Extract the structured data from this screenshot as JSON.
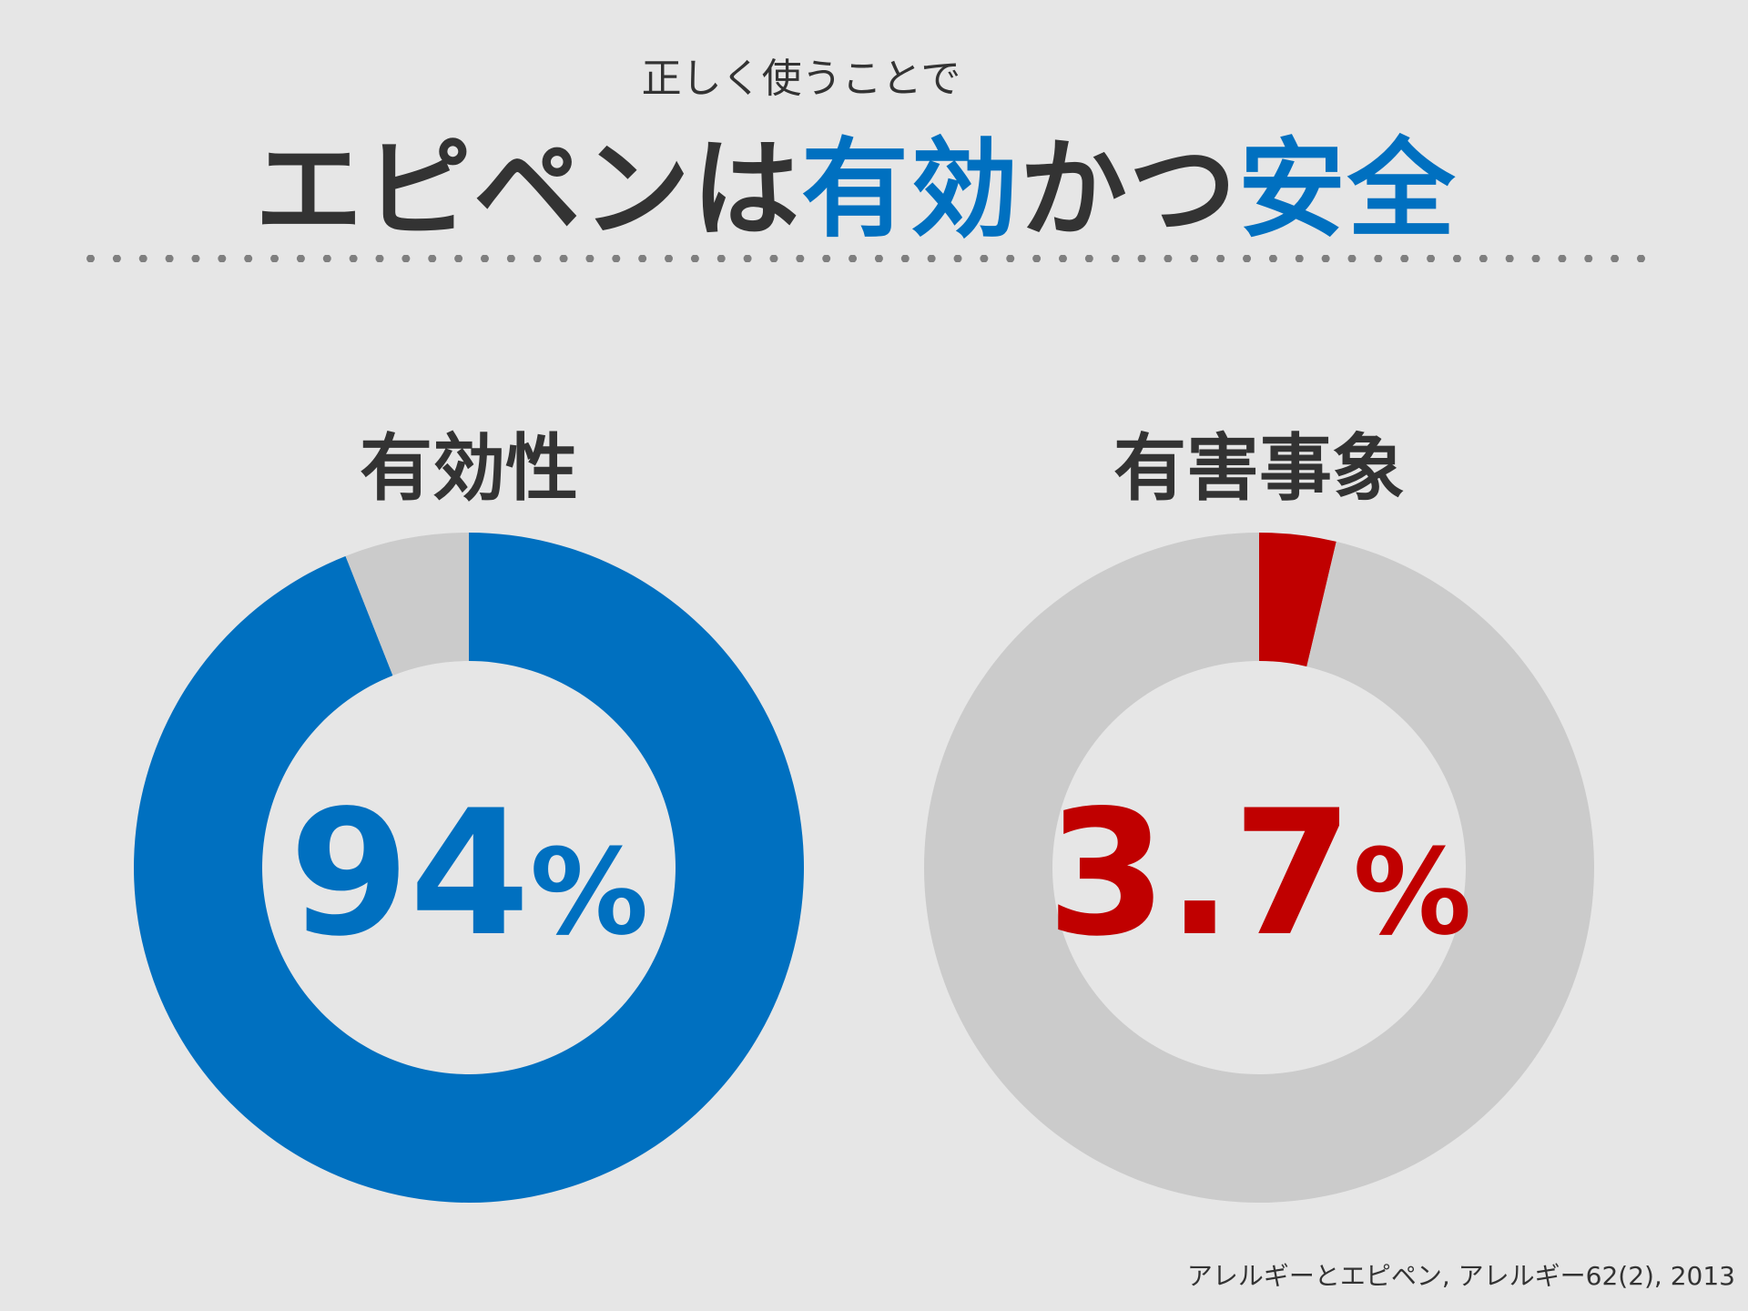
{
  "header": {
    "subtitle": "正しく使うことで",
    "title_parts": [
      "エピペンは",
      "有効",
      "かつ",
      "安全"
    ]
  },
  "colors": {
    "blue": "#0070c0",
    "red": "#c00000",
    "gray_ring": "#cbcbcb",
    "text_dark": "#333333",
    "dots": "#7f7f7f",
    "background": "#e6e6e6"
  },
  "chart_data": [
    {
      "type": "pie",
      "title": "有効性",
      "center_number": "94",
      "center_unit": "%",
      "slices": [
        {
          "value": 94,
          "color": "#0070c0"
        },
        {
          "value": 6,
          "color": "#cbcbcb"
        }
      ]
    },
    {
      "type": "pie",
      "title": "有害事象",
      "center_number": "3.7",
      "center_unit": "%",
      "slices": [
        {
          "value": 3.7,
          "color": "#c00000"
        },
        {
          "value": 96.3,
          "color": "#cbcbcb"
        }
      ]
    }
  ],
  "citation": "アレルギーとエピペン, アレルギー62(2), 2013"
}
